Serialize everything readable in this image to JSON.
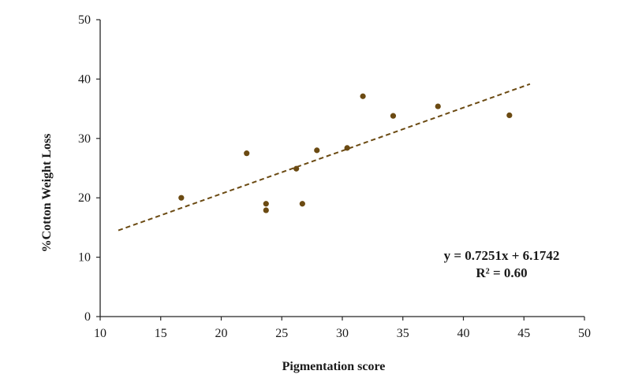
{
  "chart_data": {
    "type": "scatter",
    "title": "",
    "xlabel": "Pigmentation score",
    "ylabel": "%Cotton  Weight Loss",
    "xlim": [
      10,
      50
    ],
    "ylim": [
      0,
      50
    ],
    "x_ticks": [
      "10",
      "15",
      "20",
      "25",
      "30",
      "35",
      "40",
      "45",
      "50"
    ],
    "y_ticks": [
      "0",
      "10",
      "20",
      "30",
      "40",
      "50"
    ],
    "grid": false,
    "legend": "none",
    "series": [
      {
        "points": [
          {
            "x": 16.7,
            "y": 20.0
          },
          {
            "x": 22.1,
            "y": 27.5
          },
          {
            "x": 23.7,
            "y": 19.0
          },
          {
            "x": 23.7,
            "y": 17.9
          },
          {
            "x": 26.2,
            "y": 24.9
          },
          {
            "x": 26.7,
            "y": 19.0
          },
          {
            "x": 27.9,
            "y": 28.0
          },
          {
            "x": 30.4,
            "y": 28.4
          },
          {
            "x": 31.7,
            "y": 37.1
          },
          {
            "x": 34.2,
            "y": 33.8
          },
          {
            "x": 37.9,
            "y": 35.4
          },
          {
            "x": 43.8,
            "y": 33.9
          }
        ]
      }
    ],
    "trendline": {
      "slope": 0.7251,
      "intercept": 6.1742,
      "x_range": [
        11.5,
        45.5
      ],
      "equation": "y = 0.7251x + 6.1742",
      "r_squared": "R² = 0.60"
    },
    "colors": {
      "point": "#6b4a12",
      "trendline": "#6b4a12",
      "axis": "#262626"
    }
  }
}
